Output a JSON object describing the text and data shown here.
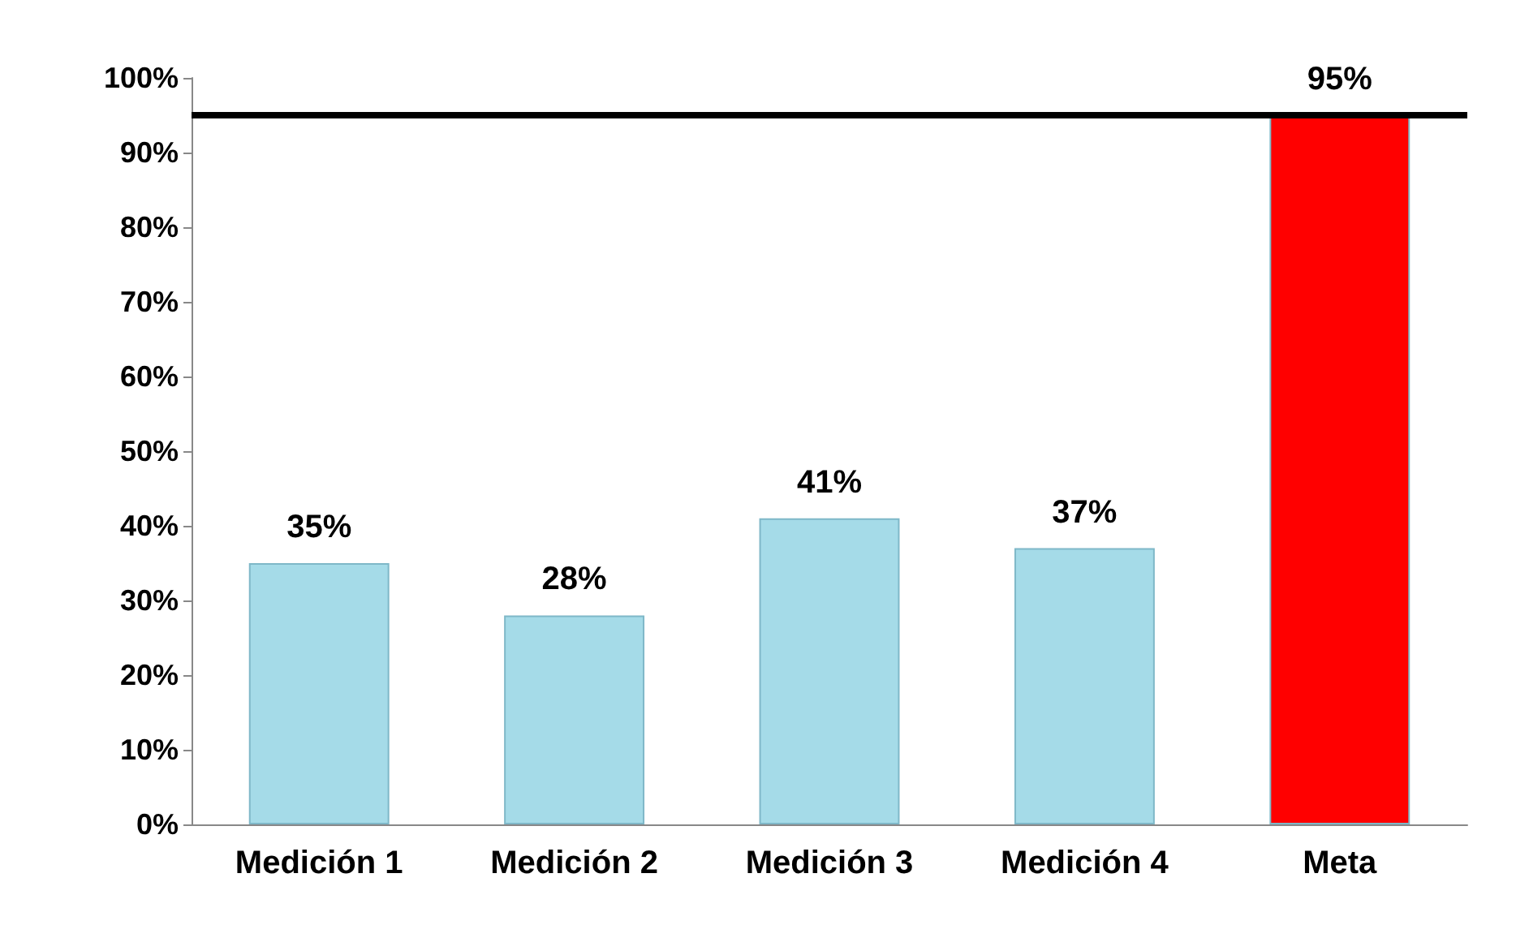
{
  "chart_data": {
    "type": "bar",
    "categories": [
      "Medición 1",
      "Medición 2",
      "Medición 3",
      "Medición 4",
      "Meta"
    ],
    "values": [
      35,
      28,
      41,
      37,
      95
    ],
    "colors": [
      "#a5dbe8",
      "#a5dbe8",
      "#a5dbe8",
      "#a5dbe8",
      "#ff0000"
    ],
    "value_labels": [
      "35%",
      "28%",
      "41%",
      "37%",
      "95%"
    ],
    "ylim": [
      0,
      100
    ],
    "yticks": [
      {
        "value": 0,
        "label": "0%"
      },
      {
        "value": 10,
        "label": "10%"
      },
      {
        "value": 20,
        "label": "20%"
      },
      {
        "value": 30,
        "label": "30%"
      },
      {
        "value": 40,
        "label": "40%"
      },
      {
        "value": 50,
        "label": "50%"
      },
      {
        "value": 60,
        "label": "60%"
      },
      {
        "value": 70,
        "label": "70%"
      },
      {
        "value": 80,
        "label": "80%"
      },
      {
        "value": 90,
        "label": "90%"
      },
      {
        "value": 100,
        "label": "100%"
      }
    ],
    "ref_lines": [
      {
        "axis": "y",
        "value": 95,
        "color": "#000000"
      }
    ],
    "grid": false
  }
}
